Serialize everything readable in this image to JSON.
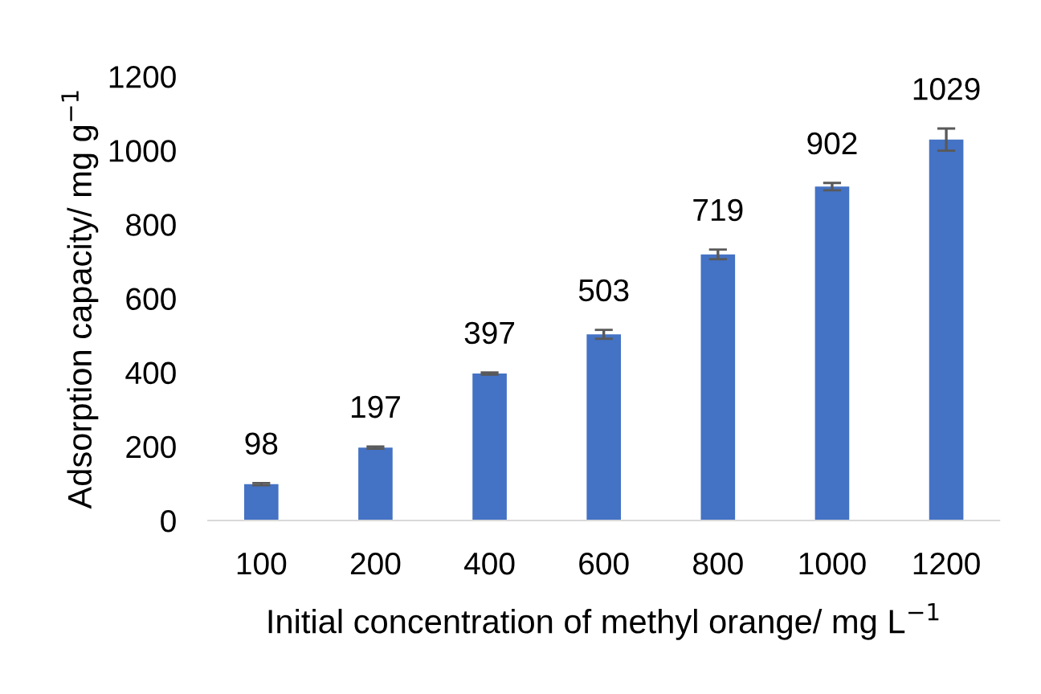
{
  "chart_data": {
    "type": "bar",
    "xlabel": "Initial concentration of methyl orange/ mg L$^{−1}$",
    "ylabel": "Adsorption capacity/ mg g$^{−1}$",
    "categories": [
      "100",
      "200",
      "400",
      "600",
      "800",
      "1000",
      "1200"
    ],
    "values": [
      98,
      197,
      397,
      503,
      719,
      902,
      1029
    ],
    "errors": [
      3,
      3,
      3,
      12,
      13,
      10,
      30
    ],
    "color": "#4472c4",
    "ylim": [
      0,
      1200
    ],
    "yticks": [
      0,
      200,
      400,
      600,
      800,
      1000,
      1200
    ],
    "grid": false,
    "data_labels": true
  }
}
